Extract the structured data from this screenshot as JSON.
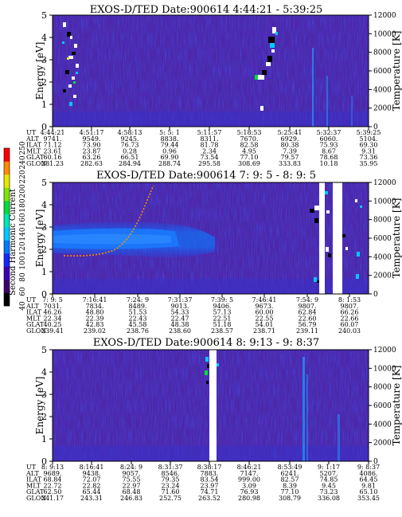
{
  "panels": [
    {
      "title": "EXOS-D/TED   Date:900614  4:44:21 - 5:39:25",
      "ylabel": "Energy [eV]",
      "y2label": "Temperature [K]",
      "yticks": [
        "0",
        "1",
        "2",
        "3",
        "4",
        "5"
      ],
      "y2ticks": [
        "0",
        "2000",
        "4000",
        "6000",
        "8000",
        "10000",
        "12000"
      ],
      "row_labels": [
        "UT",
        "ALT",
        "ILAT",
        "MLT",
        "GLAT",
        "GLON"
      ],
      "columns": [
        [
          "4:44:21",
          "9741.",
          "71.12",
          "23.61",
          "60.16",
          "281.23"
        ],
        [
          "4:51:17",
          "9549.",
          "73.90",
          "23.87",
          "63.26",
          "282.63"
        ],
        [
          "4:58:13",
          "9245.",
          "76.73",
          "0.28",
          "66.51",
          "284.94"
        ],
        [
          "5: 5: 1",
          "8838.",
          "79.44",
          "0.96",
          "69.90",
          "288.74"
        ],
        [
          "5:11:57",
          "8311.",
          "81.78",
          "2.34",
          "73.54",
          "295.58"
        ],
        [
          "5:18:53",
          "7670.",
          "82.58",
          "4.95",
          "77.10",
          "308.69"
        ],
        [
          "5:25:41",
          "6929.",
          "80.38",
          "7.39",
          "79.57",
          "333.83"
        ],
        [
          "5:32:37",
          "6060.",
          "75.93",
          "8.67",
          "78.68",
          "10.18"
        ],
        [
          "5:39:25",
          "5104.",
          "69.30",
          "9.31",
          "73.36",
          "35.95"
        ]
      ]
    },
    {
      "title": "EXOS-D/TED   Date:900614  7: 9: 5 - 8: 9: 5",
      "ylabel": "Energy [eV]",
      "y2label": "Temperature [K]",
      "yticks": [
        "0",
        "1",
        "2",
        "3",
        "4",
        "5"
      ],
      "y2ticks": [
        "0",
        "2000",
        "4000",
        "6000",
        "8000",
        "10000",
        "12000"
      ],
      "row_labels": [
        "UT",
        "ALT",
        "ILAT",
        "MLT",
        "GLAT",
        "GLON"
      ],
      "columns": [
        [
          "7: 9: 5",
          "7031.",
          "46.26",
          "22.34",
          "40.25",
          "239.41"
        ],
        [
          "7:16:41",
          "7834.",
          "48.80",
          "22.39",
          "42.83",
          "239.02"
        ],
        [
          "7:24: 9",
          "8489.",
          "51.53",
          "22.43",
          "45.58",
          "238.76"
        ],
        [
          "7:31:37",
          "9013.",
          "54.33",
          "22.47",
          "48.38",
          "238.60"
        ],
        [
          "7:39: 5",
          "9406.",
          "57.13",
          "22.51",
          "51.18",
          "238.57"
        ],
        [
          "7:46:41",
          "9673.",
          "60.00",
          "22.55",
          "54.01",
          "238.71"
        ],
        [
          "7:54: 9",
          "9807.",
          "62.84",
          "22.60",
          "56.79",
          "239.11"
        ],
        [
          "8: 1:53",
          "9807.",
          "66.26",
          "22.66",
          "60.07",
          "240.03"
        ]
      ]
    },
    {
      "title": "EXOS-D/TED   Date:900614  8: 9:13 - 9: 8:37",
      "ylabel": "Energy [eV]",
      "y2label": "Temperature [K]",
      "yticks": [
        "0",
        "1",
        "2",
        "3",
        "4",
        "5"
      ],
      "y2ticks": [
        "0",
        "2000",
        "4000",
        "6000",
        "8000",
        "10000",
        "12000"
      ],
      "row_labels": [
        "UT",
        "ALT",
        "ILAT",
        "MLT",
        "GLAT",
        "GLON"
      ],
      "columns": [
        [
          "8: 9:13",
          "9689.",
          "68.84",
          "22.72",
          "62.50",
          "241.17"
        ],
        [
          "8:16:41",
          "9438.",
          "72.07",
          "22.82",
          "65.44",
          "243.31"
        ],
        [
          "8:24: 9",
          "9057.",
          "75.55",
          "22.97",
          "68.48",
          "246.83"
        ],
        [
          "8:31:37",
          "8546.",
          "79.35",
          "23.24",
          "71.60",
          "252.75"
        ],
        [
          "8:38:17",
          "7883.",
          "83.54",
          "23.97",
          "74.71",
          "263.52"
        ],
        [
          "8:46:21",
          "7147.",
          "999.00",
          "3.09",
          "76.93",
          "280.98"
        ],
        [
          "8:53:49",
          "6241.",
          "82.57",
          "8.39",
          "77.10",
          "308.79"
        ],
        [
          "9: 1:17",
          "5207.",
          "74.85",
          "9.45",
          "73.23",
          "336.08"
        ],
        [
          "9: 8:37",
          "4086.",
          "64.45",
          "9.81",
          "65.10",
          "353.45"
        ]
      ]
    }
  ],
  "colorbar": {
    "label": "Second Harmonic Current",
    "ticks": [
      "40",
      "60",
      "80",
      "100",
      "120",
      "140",
      "160",
      "180",
      "200",
      "220",
      "240",
      "250"
    ],
    "colors": [
      "#000000",
      "#3c006e",
      "#3b00b8",
      "#1428ff",
      "#0078ff",
      "#00c8ff",
      "#00e6b4",
      "#00dc3c",
      "#7ae600",
      "#e6e600",
      "#ff8c00",
      "#ff0000"
    ]
  },
  "chart_data": [
    {
      "type": "heatmap",
      "title": "EXOS-D/TED   Date:900614  4:44:21 - 5:39:25",
      "xlabel": "UT",
      "ylabel": "Energy [eV]",
      "y2label": "Temperature [K]",
      "ylim": [
        0,
        5
      ],
      "y2lim": [
        0,
        12000
      ],
      "x": [
        "4:44:21",
        "4:51:17",
        "4:58:13",
        "5: 5: 1",
        "5:11:57",
        "5:18:53",
        "5:25:41",
        "5:32:37",
        "5:39:25"
      ],
      "background_level": 80,
      "features": [
        {
          "kind": "patches",
          "x_range": [
            "4:44:21",
            "4:51:17"
          ],
          "energy_range": [
            0.5,
            4.8
          ],
          "level": "high"
        },
        {
          "kind": "patches",
          "x_range": [
            "5:18:53",
            "5:25:41"
          ],
          "energy_range": [
            0.5,
            4.8
          ],
          "level": "high"
        },
        {
          "kind": "streak",
          "x": "5:32:37",
          "energy_range": [
            0,
            4.5
          ],
          "level": 120
        }
      ]
    },
    {
      "type": "heatmap",
      "title": "EXOS-D/TED   Date:900614  7: 9: 5 - 8: 9: 5",
      "xlabel": "UT",
      "ylabel": "Energy [eV]",
      "y2label": "Temperature [K]",
      "ylim": [
        0,
        5
      ],
      "y2lim": [
        0,
        12000
      ],
      "x": [
        "7: 9: 5",
        "7:16:41",
        "7:24: 9",
        "7:31:37",
        "7:39: 5",
        "7:46:41",
        "7:54: 9",
        "8: 1:53"
      ],
      "background_level": 80,
      "features": [
        {
          "kind": "band",
          "x_range": [
            "7: 9: 5",
            "7:39: 5"
          ],
          "energy_range": [
            2.3,
            3.6
          ],
          "level": 120
        },
        {
          "kind": "curve",
          "x_range": [
            "7: 9: 5",
            "7:24: 9"
          ],
          "energy_range": [
            1.7,
            4.0
          ],
          "level": 240
        },
        {
          "kind": "gap",
          "x_range": [
            "7:54: 9",
            "8: 1:53"
          ],
          "level": null
        },
        {
          "kind": "patches",
          "x_range": [
            "7:54: 9",
            "8: 9: 5"
          ],
          "energy_range": [
            0.5,
            5.0
          ],
          "level": "high"
        }
      ]
    },
    {
      "type": "heatmap",
      "title": "EXOS-D/TED   Date:900614  8: 9:13 - 9: 8:37",
      "xlabel": "UT",
      "ylabel": "Energy [eV]",
      "y2label": "Temperature [K]",
      "ylim": [
        0,
        5
      ],
      "y2lim": [
        0,
        12000
      ],
      "x": [
        "8: 9:13",
        "8:16:41",
        "8:24: 9",
        "8:31:37",
        "8:38:17",
        "8:46:21",
        "8:53:49",
        "9: 1:17",
        "9: 8:37"
      ],
      "background_level": 80,
      "features": [
        {
          "kind": "gap",
          "x_range": [
            "8:31:37",
            "8:38:17"
          ],
          "level": null
        },
        {
          "kind": "patches",
          "x_range": [
            "8:31:37",
            "8:38:17"
          ],
          "energy_range": [
            3.5,
            5.0
          ],
          "level": "high"
        },
        {
          "kind": "streak",
          "x": "8:53:49",
          "energy_range": [
            0,
            5.0
          ],
          "level": 120
        }
      ]
    }
  ]
}
